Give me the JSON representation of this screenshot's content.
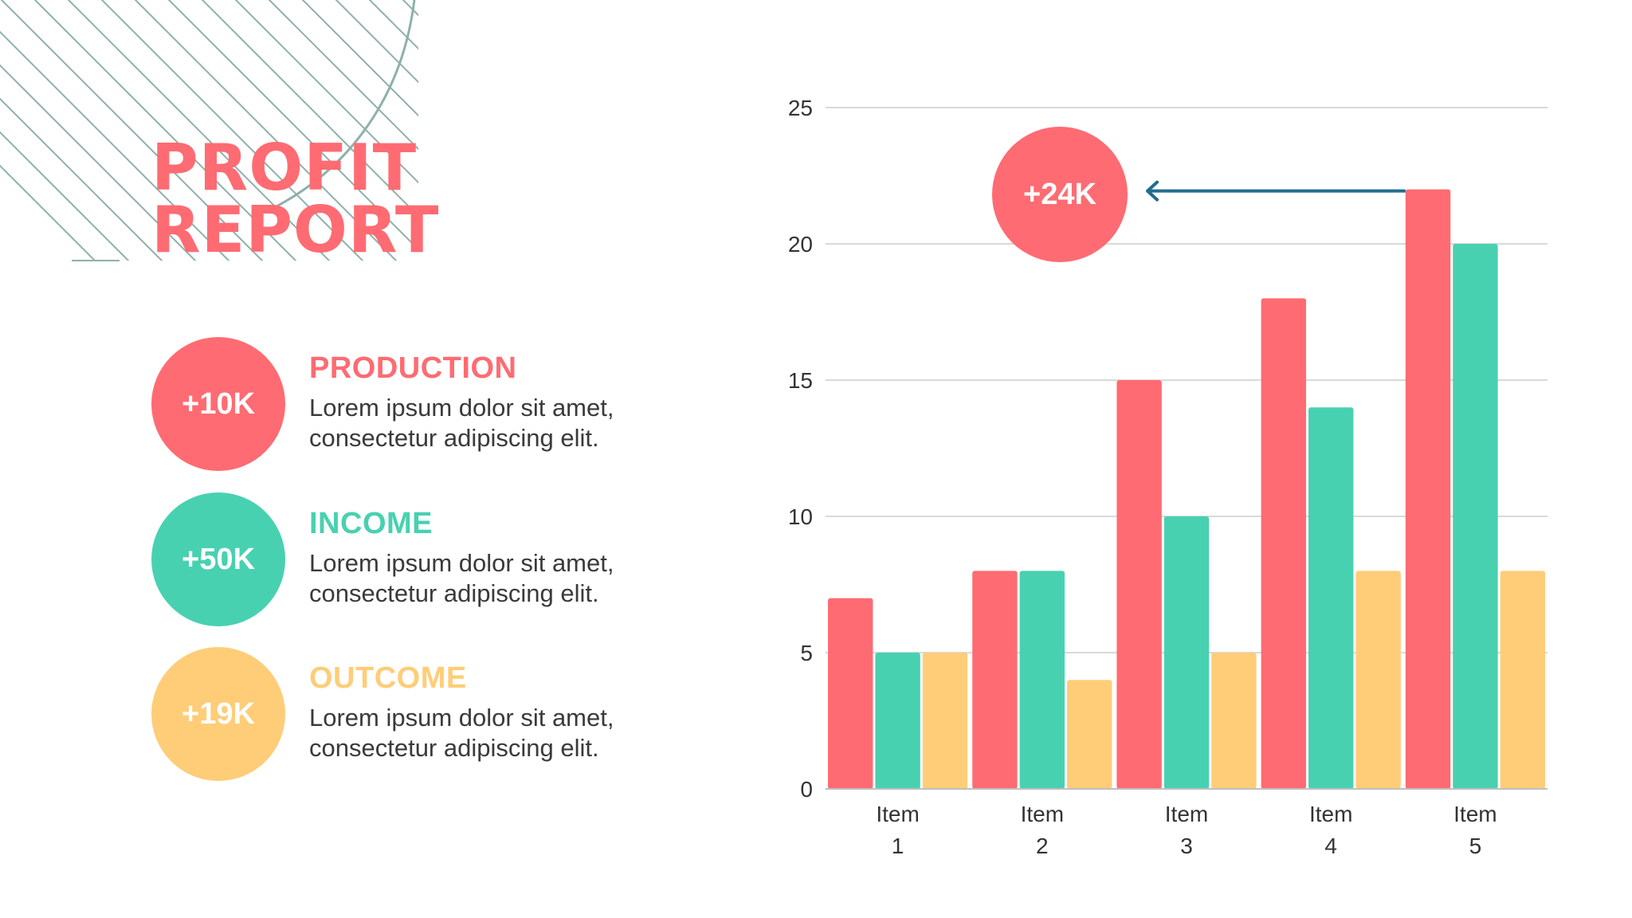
{
  "title": {
    "line1": "PROFIT",
    "line2": "REPORT"
  },
  "colors": {
    "production": "#FF6B72",
    "income": "#48D1B0",
    "outcome": "#FFCD78",
    "arrow": "#1F6E8C",
    "decor": "#8FB0AA"
  },
  "stats": [
    {
      "value": "+10K",
      "label": "PRODUCTION",
      "description": "Lorem ipsum dolor sit amet, consectetur adipiscing elit.",
      "color": "#FF6B72"
    },
    {
      "value": "+50K",
      "label": "INCOME",
      "description": "Lorem ipsum dolor sit amet, consectetur adipiscing elit.",
      "color": "#48D1B0"
    },
    {
      "value": "+19K",
      "label": "OUTCOME",
      "description": "Lorem ipsum dolor sit amet, consectetur adipiscing elit.",
      "color": "#FFCD78"
    }
  ],
  "callout": {
    "value": "+24K",
    "color": "#FF6B72"
  },
  "chart_data": {
    "type": "bar",
    "categories": [
      [
        "Item",
        "1"
      ],
      [
        "Item",
        "2"
      ],
      [
        "Item",
        "3"
      ],
      [
        "Item",
        "4"
      ],
      [
        "Item",
        "5"
      ]
    ],
    "series": [
      {
        "values": [
          7,
          8,
          15,
          18,
          22
        ],
        "color": "#FF6B72"
      },
      {
        "values": [
          5,
          8,
          10,
          14,
          20
        ],
        "color": "#48D1B0"
      },
      {
        "values": [
          5,
          4,
          5,
          8,
          8
        ],
        "color": "#FFCD78"
      }
    ],
    "ylim": [
      0,
      25
    ],
    "yticks": [
      "0",
      "5",
      "10",
      "15",
      "20",
      "25"
    ],
    "grid": true,
    "title": "",
    "xlabel": "",
    "ylabel": ""
  }
}
